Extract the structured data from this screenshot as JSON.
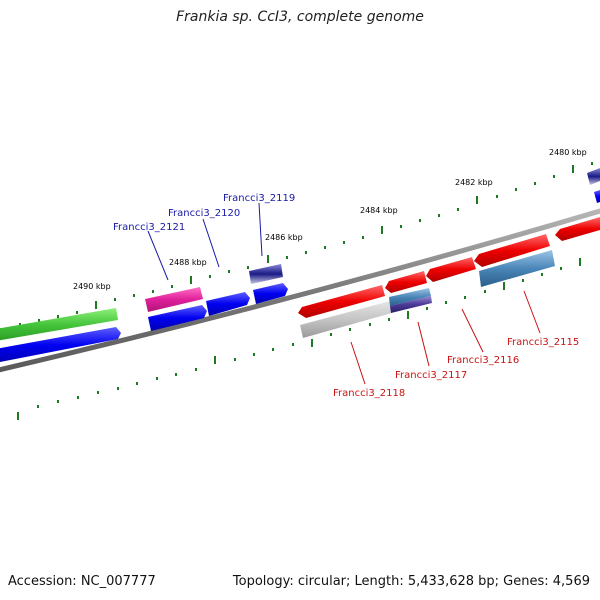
{
  "title": "Frankia sp. CcI3, complete genome",
  "footer": {
    "accession": "Accession: NC_007777",
    "stats": "Topology: circular; Length: 5,433,628 bp; Genes: 4,569"
  },
  "colors": {
    "backbone": "#808080",
    "plus_label": "#1a1aa6",
    "minus_label": "#c81414",
    "tick": "#1e7a1e"
  },
  "scale_labels": [
    "2480 kbp",
    "2482 kbp",
    "2484 kbp",
    "2486 kbp",
    "2488 kbp",
    "2490 kbp"
  ],
  "gene_labels_top": [
    "Francci3_2121",
    "Francci3_2120",
    "Francci3_2119"
  ],
  "gene_labels_bottom": [
    "Francci3_2118",
    "Francci3_2117",
    "Francci3_2116",
    "Francci3_2115"
  ]
}
